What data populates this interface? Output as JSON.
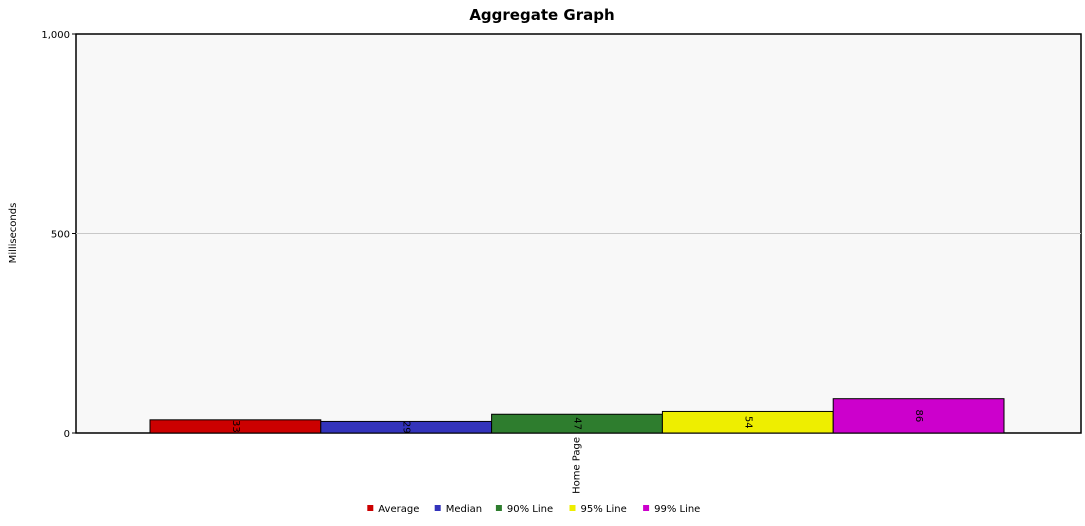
{
  "chart_data": {
    "type": "bar",
    "title": "Aggregate Graph",
    "ylabel": "Milliseconds",
    "xlabel": "",
    "categories": [
      "Home Page"
    ],
    "ylim": [
      0,
      1000
    ],
    "yticks": [
      0,
      500,
      1000
    ],
    "ytick_labels": [
      "0",
      "500",
      "1,000"
    ],
    "grid": true,
    "legend_position": "bottom",
    "series": [
      {
        "name": "Average",
        "color": "#cc0000",
        "values": [
          33
        ]
      },
      {
        "name": "Median",
        "color": "#3333bb",
        "values": [
          29
        ]
      },
      {
        "name": "90% Line",
        "color": "#2e7d2e",
        "values": [
          47
        ]
      },
      {
        "name": "95% Line",
        "color": "#eeee00",
        "values": [
          54
        ]
      },
      {
        "name": "99% Line",
        "color": "#cc00cc",
        "values": [
          86
        ]
      }
    ]
  }
}
